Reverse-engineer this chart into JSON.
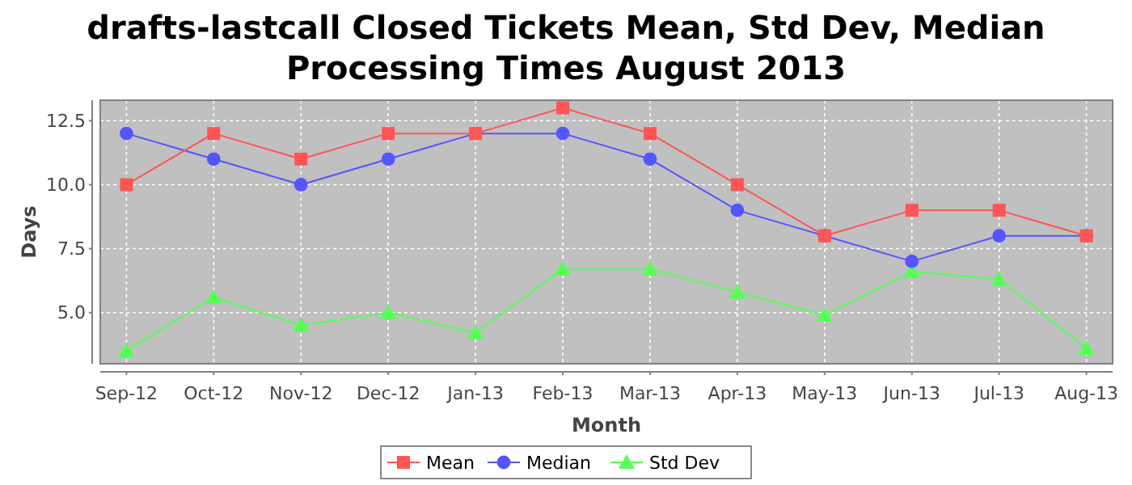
{
  "chart_data": {
    "type": "line",
    "title": "drafts-lastcall Closed Tickets Mean, Std Dev, Median Processing Times August 2013",
    "xlabel": "Month",
    "ylabel": "Days",
    "categories": [
      "Sep-12",
      "Oct-12",
      "Nov-12",
      "Dec-12",
      "Jan-13",
      "Feb-13",
      "Mar-13",
      "Apr-13",
      "May-13",
      "Jun-13",
      "Jul-13",
      "Aug-13"
    ],
    "series": [
      {
        "name": "Mean",
        "color": "#ff5555",
        "marker": "square",
        "values": [
          10,
          12,
          11,
          12,
          12,
          13,
          12,
          10,
          8,
          9,
          9,
          8
        ]
      },
      {
        "name": "Median",
        "color": "#5555ff",
        "marker": "circle",
        "values": [
          12,
          11,
          10,
          11,
          12,
          12,
          11,
          9,
          8,
          7,
          8,
          8
        ]
      },
      {
        "name": "Std Dev",
        "color": "#55ff55",
        "marker": "triangle",
        "values": [
          3.5,
          5.6,
          4.5,
          5.0,
          4.2,
          6.7,
          6.7,
          5.8,
          4.9,
          6.6,
          6.3,
          3.6
        ]
      }
    ],
    "ylim": [
      3.0,
      13.3
    ],
    "yticks": [
      {
        "value": 5,
        "label": "5.0"
      },
      {
        "value": 7.5,
        "label": "7.5"
      },
      {
        "value": 10,
        "label": "10.0"
      },
      {
        "value": 12.5,
        "label": "12.5"
      }
    ],
    "grid": true,
    "legend": "bottom"
  }
}
